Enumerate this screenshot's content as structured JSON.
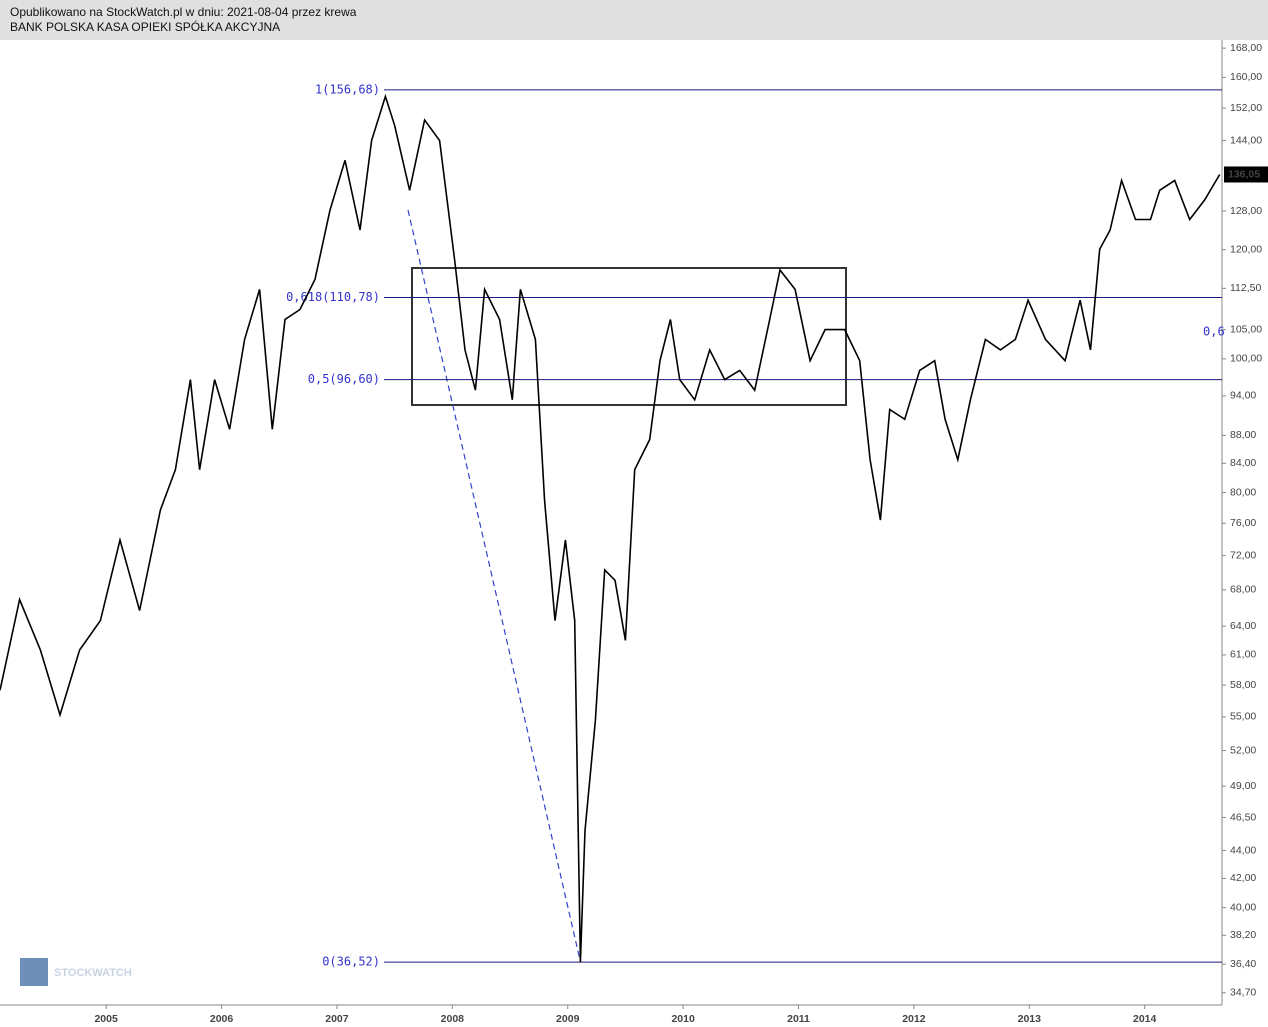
{
  "header": {
    "published": "Opublikowano na StockWatch.pl w dniu: 2021-08-04 przez krewa",
    "instrument": "BANK POLSKA KASA OPIEKI SPÓŁKA AKCYJNA"
  },
  "chart_data": {
    "type": "line",
    "log_scale": true,
    "color": "#000000",
    "level_color": "#1a1a80",
    "watermark": "STOCKWATCH",
    "xlim": [
      2004.08,
      2014.67
    ],
    "xticks": [
      2005,
      2006,
      2007,
      2008,
      2009,
      2010,
      2011,
      2012,
      2013,
      2014
    ],
    "ylim": [
      34.0,
      170.3
    ],
    "yticks": [
      {
        "value": 168,
        "label": "168,00"
      },
      {
        "value": 160,
        "label": "160,00"
      },
      {
        "value": 152,
        "label": "152,00"
      },
      {
        "value": 144,
        "label": "144,00"
      },
      {
        "value": 128,
        "label": "128,00"
      },
      {
        "value": 120,
        "label": "120,00"
      },
      {
        "value": 112.5,
        "label": "112,50"
      },
      {
        "value": 105,
        "label": "105,00"
      },
      {
        "value": 100,
        "label": "100,00"
      },
      {
        "value": 94,
        "label": "94,00"
      },
      {
        "value": 88,
        "label": "88,00"
      },
      {
        "value": 84,
        "label": "84,00"
      },
      {
        "value": 80,
        "label": "80,00"
      },
      {
        "value": 76,
        "label": "76,00"
      },
      {
        "value": 72,
        "label": "72,00"
      },
      {
        "value": 68,
        "label": "68,00"
      },
      {
        "value": 64,
        "label": "64,00"
      },
      {
        "value": 61,
        "label": "61,00"
      },
      {
        "value": 58,
        "label": "58,00"
      },
      {
        "value": 55,
        "label": "55,00"
      },
      {
        "value": 52,
        "label": "52,00"
      },
      {
        "value": 49,
        "label": "49,00"
      },
      {
        "value": 46.5,
        "label": "46,50"
      },
      {
        "value": 44,
        "label": "44,00"
      },
      {
        "value": 42,
        "label": "42,00"
      },
      {
        "value": 40,
        "label": "40,00"
      },
      {
        "value": 38.2,
        "label": "38,20"
      },
      {
        "value": 36.4,
        "label": "36,40"
      },
      {
        "value": 34.7,
        "label": "34,70"
      }
    ],
    "last_price": {
      "value": 136.05,
      "label": "136,05"
    },
    "levels": [
      {
        "value": 156.68,
        "label": "1(156,68)"
      },
      {
        "value": 110.78,
        "label": "0,618(110,78)"
      },
      {
        "value": 96.6,
        "label": "0,5(96,60)"
      },
      {
        "value": 36.52,
        "label": "0(36,52)"
      }
    ],
    "side_label": "0,6",
    "x": [
      2004.08,
      2004.25,
      2004.43,
      2004.6,
      2004.77,
      2004.95,
      2005.12,
      2005.29,
      2005.47,
      2005.6,
      2005.73,
      2005.81,
      2005.94,
      2006.07,
      2006.2,
      2006.33,
      2006.44,
      2006.55,
      2006.68,
      2006.81,
      2006.94,
      2007.07,
      2007.2,
      2007.3,
      2007.42,
      2007.5,
      2007.63,
      2007.76,
      2007.89,
      2008.02,
      2008.11,
      2008.2,
      2008.28,
      2008.41,
      2008.52,
      2008.59,
      2008.72,
      2008.8,
      2008.89,
      2008.98,
      2009.06,
      2009.11,
      2009.15,
      2009.24,
      2009.32,
      2009.41,
      2009.5,
      2009.58,
      2009.71,
      2009.8,
      2009.89,
      2009.97,
      2010.1,
      2010.23,
      2010.36,
      2010.49,
      2010.62,
      2010.75,
      2010.84,
      2010.97,
      2011.1,
      2011.23,
      2011.4,
      2011.53,
      2011.62,
      2011.71,
      2011.79,
      2011.92,
      2012.05,
      2012.18,
      2012.27,
      2012.38,
      2012.49,
      2012.62,
      2012.75,
      2012.88,
      2012.99,
      2013.14,
      2013.31,
      2013.44,
      2013.53,
      2013.61,
      2013.7,
      2013.8,
      2013.92,
      2014.05,
      2014.13,
      2014.26,
      2014.39,
      2014.52,
      2014.65
    ],
    "values": [
      57.5,
      66.9,
      61.5,
      55.2,
      61.5,
      64.6,
      73.9,
      65.7,
      77.7,
      83.1,
      96.6,
      83.1,
      96.6,
      88.9,
      103.3,
      112.3,
      88.9,
      106.8,
      108.6,
      114.2,
      128.2,
      139.3,
      124.0,
      144.0,
      155.0,
      147.7,
      132.5,
      149.0,
      144.0,
      118.0,
      101.5,
      94.9,
      112.3,
      106.8,
      93.4,
      112.3,
      103.3,
      78.9,
      64.6,
      73.9,
      64.6,
      36.52,
      45.5,
      54.7,
      70.3,
      69.1,
      62.5,
      83.1,
      87.4,
      99.7,
      106.8,
      96.6,
      93.4,
      101.5,
      96.6,
      98.1,
      94.9,
      106.8,
      116.0,
      112.3,
      99.7,
      105.0,
      105.0,
      99.7,
      84.5,
      76.4,
      91.9,
      90.4,
      98.1,
      99.7,
      90.4,
      84.5,
      93.4,
      103.3,
      101.5,
      103.3,
      110.3,
      103.3,
      99.7,
      110.3,
      101.5,
      120.1,
      124.0,
      134.7,
      126.2,
      126.2,
      132.5,
      134.7,
      126.2,
      130.4,
      136.05
    ]
  }
}
